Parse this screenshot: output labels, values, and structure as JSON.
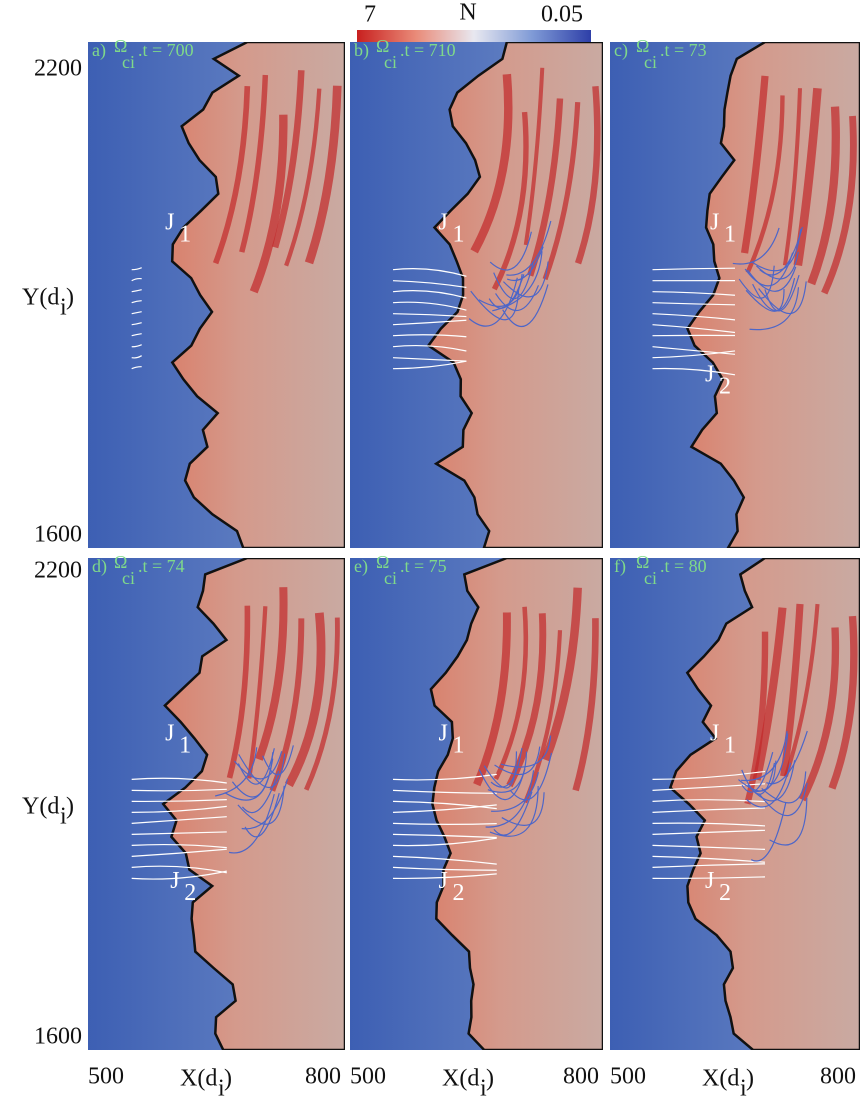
{
  "colorbar": {
    "label": "N",
    "min_label": "7",
    "max_label": "0.05"
  },
  "time_symbol": "Ω",
  "time_subscript": "ci",
  "y_axis": {
    "label": "Y(d",
    "label_subscript": "i",
    "label_close": ")",
    "top_tick": "2200",
    "bottom_tick": "1600"
  },
  "x_axis": {
    "label": "X(d",
    "label_subscript": "i",
    "label_close": ")",
    "left_tick": "500",
    "right_tick": "800"
  },
  "panels": [
    {
      "label": "a)",
      "time": ".t = 700",
      "currents": [
        {
          "letter": "J",
          "subscript": "1"
        }
      ]
    },
    {
      "label": "b)",
      "time": ".t = 710",
      "currents": [
        {
          "letter": "J",
          "subscript": "1"
        }
      ]
    },
    {
      "label": "c)",
      "time": ".t = 73",
      "currents": [
        {
          "letter": "J",
          "subscript": "1"
        },
        {
          "letter": "J",
          "subscript": "2"
        }
      ]
    },
    {
      "label": "d)",
      "time": ".t = 74",
      "currents": [
        {
          "letter": "J",
          "subscript": "1"
        },
        {
          "letter": "J",
          "subscript": "2"
        }
      ]
    },
    {
      "label": "e)",
      "time": ".t = 75",
      "currents": [
        {
          "letter": "J",
          "subscript": "1"
        },
        {
          "letter": "J",
          "subscript": "2"
        }
      ]
    },
    {
      "label": "f)",
      "time": ".t = 80",
      "currents": [
        {
          "letter": "J",
          "subscript": "1"
        },
        {
          "letter": "J",
          "subscript": "2"
        }
      ]
    }
  ]
}
